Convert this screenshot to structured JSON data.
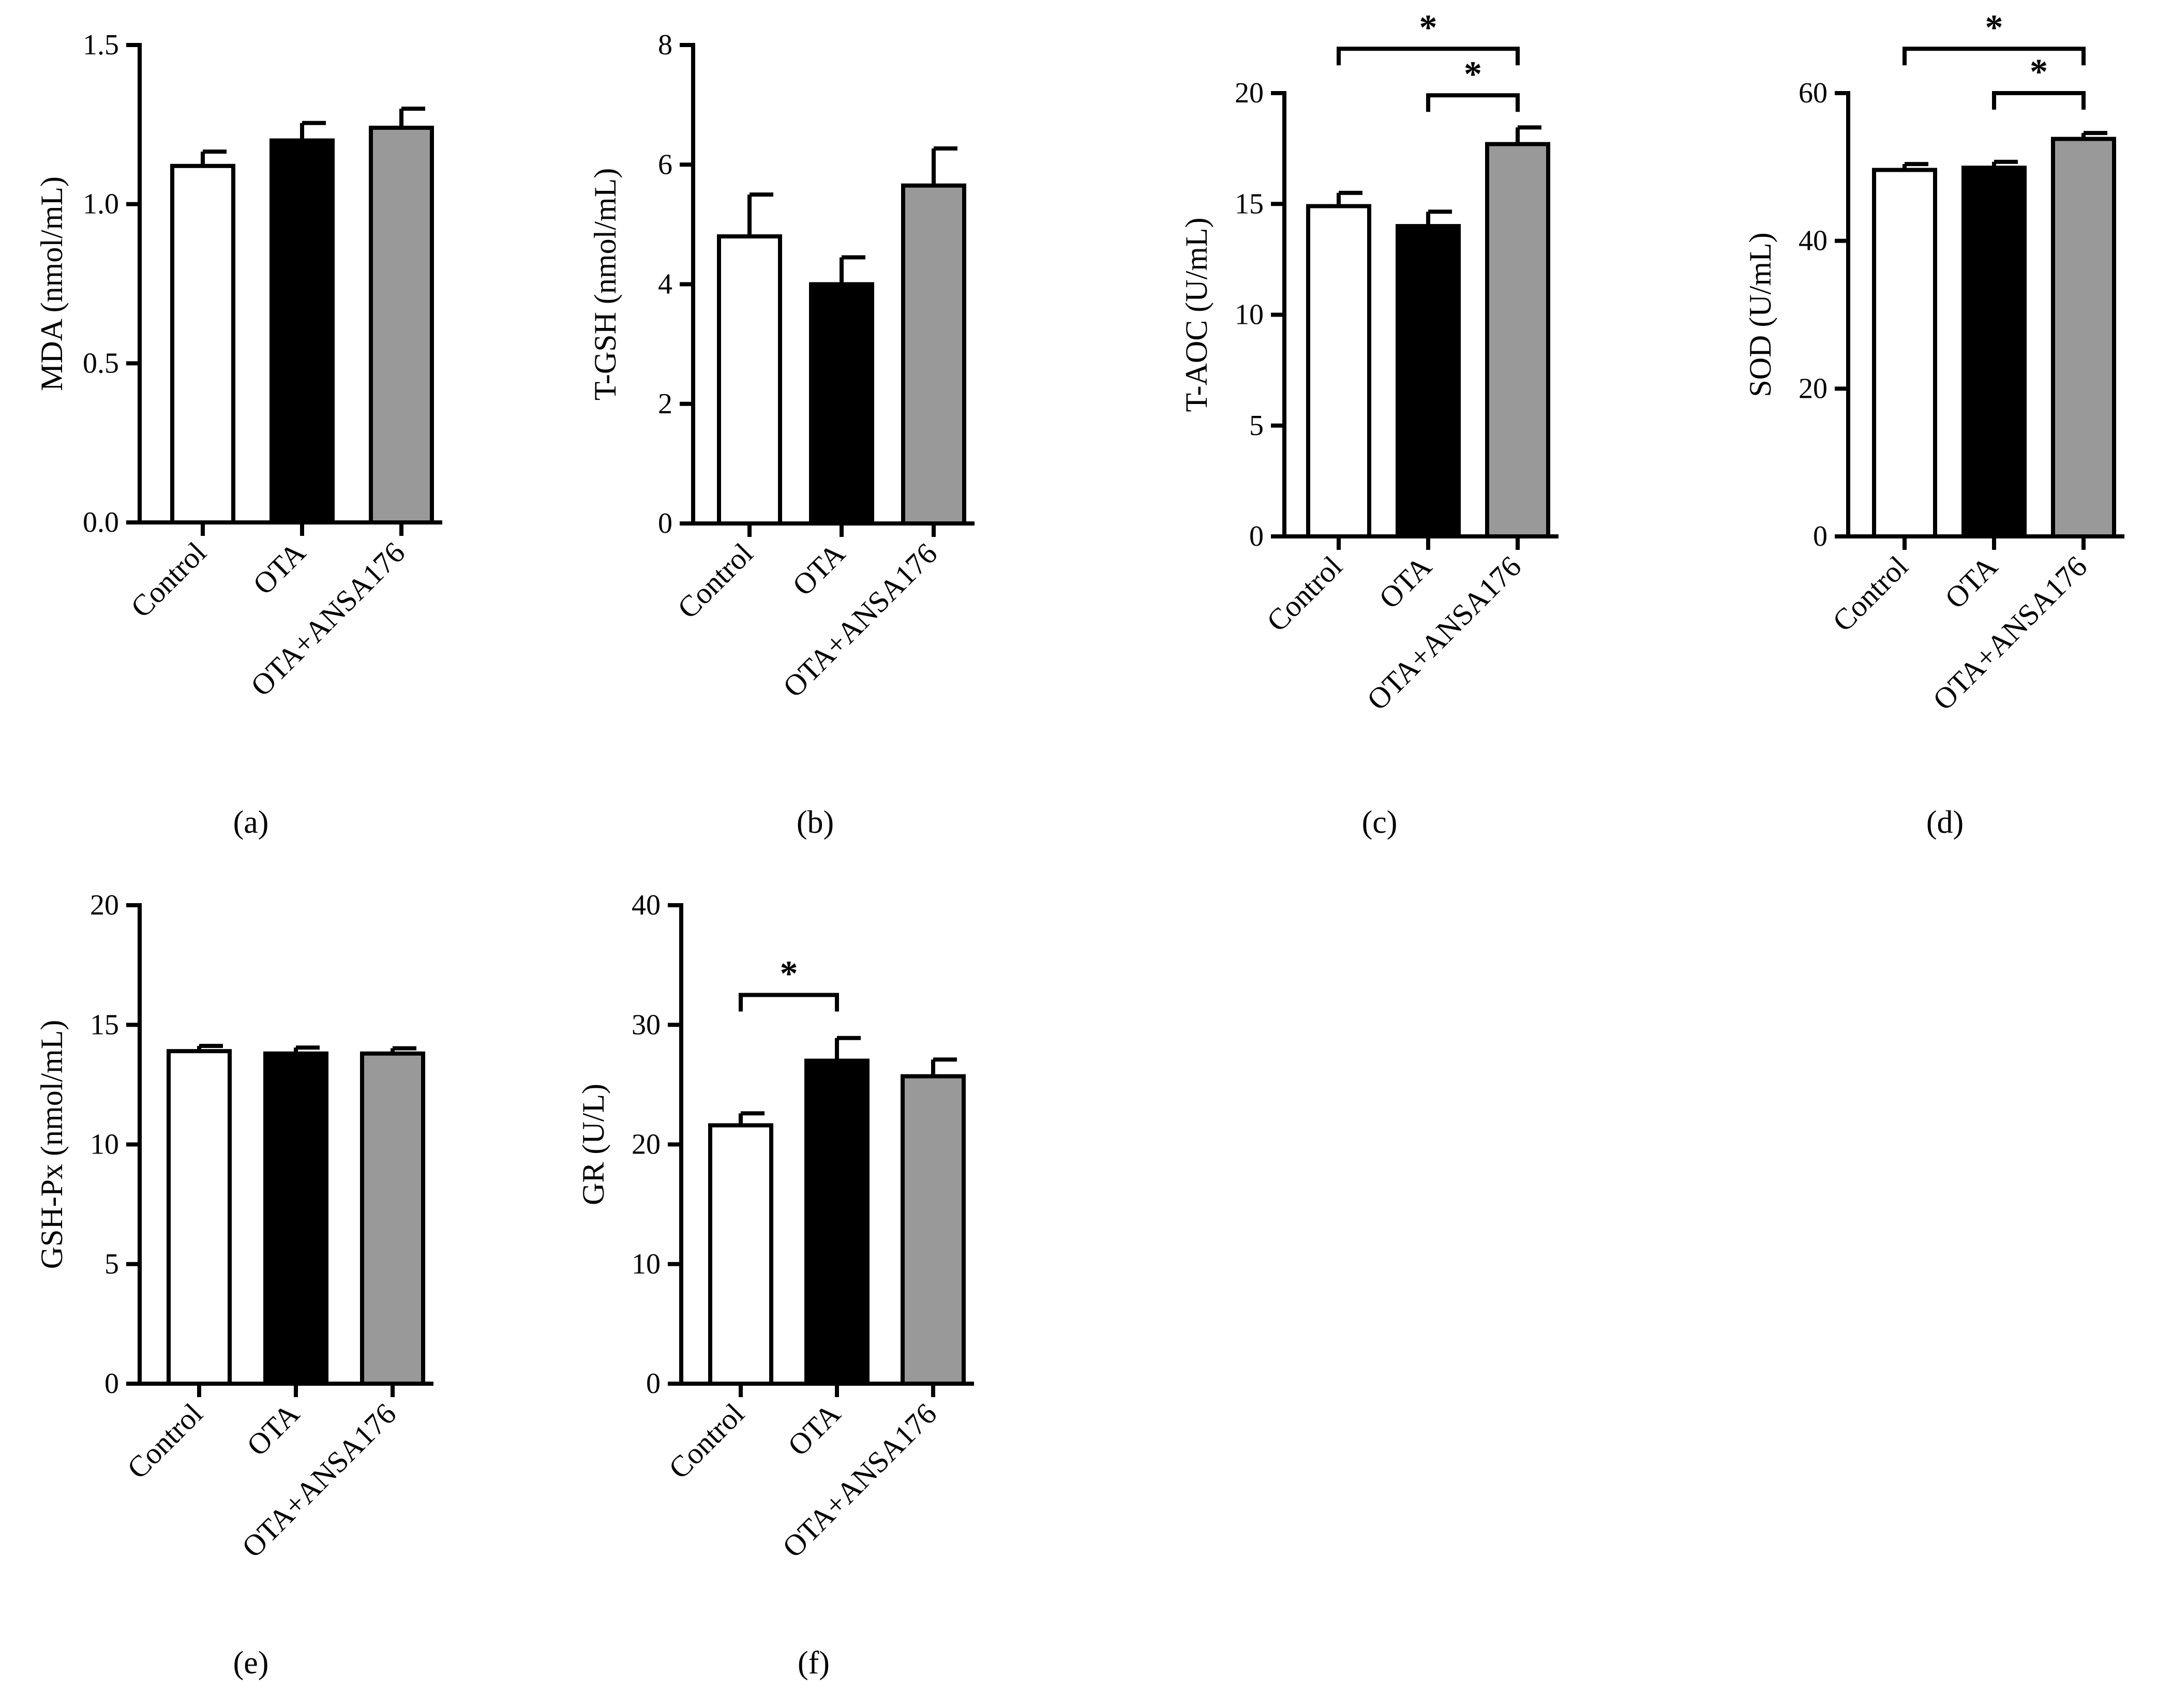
{
  "figure": {
    "panels_colors": {
      "Control": "#ffffff",
      "OTA": "#000000",
      "OTA+ANSA176": "#999999",
      "axis": "#000000"
    }
  },
  "chart_data": [
    {
      "type": "bar",
      "panel_label": "(a)",
      "ylabel": "MDA (nmol/mL)",
      "categories": [
        "Control",
        "OTA",
        "OTA+ANSA176"
      ],
      "values": [
        1.12,
        1.2,
        1.24
      ],
      "errors": [
        0.045,
        0.055,
        0.06
      ],
      "ylim": [
        0,
        1.5
      ],
      "yticks": [
        0.0,
        0.5,
        1.0,
        1.5
      ],
      "ytick_labels": [
        "0.0",
        "0.5",
        "1.0",
        "1.5"
      ],
      "significance": []
    },
    {
      "type": "bar",
      "panel_label": "(b)",
      "ylabel": "T-GSH (nmol/mL)",
      "categories": [
        "Control",
        "OTA",
        "OTA+ANSA176"
      ],
      "values": [
        4.8,
        4.0,
        5.65
      ],
      "errors": [
        0.7,
        0.45,
        0.62
      ],
      "ylim": [
        0,
        8
      ],
      "yticks": [
        0,
        2,
        4,
        6,
        8
      ],
      "ytick_labels": [
        "0",
        "2",
        "4",
        "6",
        "8"
      ],
      "significance": []
    },
    {
      "type": "bar",
      "panel_label": "(c)",
      "ylabel": "T-AOC (U/mL)",
      "categories": [
        "Control",
        "OTA",
        "OTA+ANSA176"
      ],
      "values": [
        14.9,
        14.0,
        17.7
      ],
      "errors": [
        0.6,
        0.65,
        0.75
      ],
      "ylim": [
        0,
        20
      ],
      "yticks": [
        0,
        5,
        10,
        15,
        20
      ],
      "ytick_labels": [
        "0",
        "5",
        "10",
        "15",
        "20"
      ],
      "significance": [
        {
          "from": 0,
          "to": 2,
          "y": 22.0,
          "label": "*"
        },
        {
          "from": 1,
          "to": 2,
          "y": 19.9,
          "label": "*"
        }
      ]
    },
    {
      "type": "bar",
      "panel_label": "(d)",
      "ylabel": "SOD (U/mL)",
      "categories": [
        "Control",
        "OTA",
        "OTA+ANSA176"
      ],
      "values": [
        49.6,
        49.9,
        53.8
      ],
      "errors": [
        0.8,
        0.8,
        0.8
      ],
      "ylim": [
        0,
        60
      ],
      "yticks": [
        0,
        20,
        40,
        60
      ],
      "ytick_labels": [
        "0",
        "20",
        "40",
        "60"
      ],
      "significance": [
        {
          "from": 0,
          "to": 2,
          "y": 66.0,
          "label": "*"
        },
        {
          "from": 1,
          "to": 2,
          "y": 60.0,
          "label": "*"
        }
      ]
    },
    {
      "type": "bar",
      "panel_label": "(e)",
      "ylabel": "GSH-Px (nmol/mL)",
      "categories": [
        "Control",
        "OTA",
        "OTA+ANSA176"
      ],
      "values": [
        13.9,
        13.8,
        13.8
      ],
      "errors": [
        0.22,
        0.25,
        0.22
      ],
      "ylim": [
        0,
        20
      ],
      "yticks": [
        0,
        5,
        10,
        15,
        20
      ],
      "ytick_labels": [
        "0",
        "5",
        "10",
        "15",
        "20"
      ],
      "significance": []
    },
    {
      "type": "bar",
      "panel_label": "(f)",
      "ylabel": "GR (U/L)",
      "categories": [
        "Control",
        "OTA",
        "OTA+ANSA176"
      ],
      "values": [
        21.6,
        27.0,
        25.7
      ],
      "errors": [
        1.0,
        1.9,
        1.4
      ],
      "ylim": [
        0,
        40
      ],
      "yticks": [
        0,
        10,
        20,
        30,
        40
      ],
      "ytick_labels": [
        "0",
        "10",
        "20",
        "30",
        "40"
      ],
      "significance": [
        {
          "from": 0,
          "to": 1,
          "y": 32.5,
          "label": "*"
        }
      ]
    }
  ]
}
